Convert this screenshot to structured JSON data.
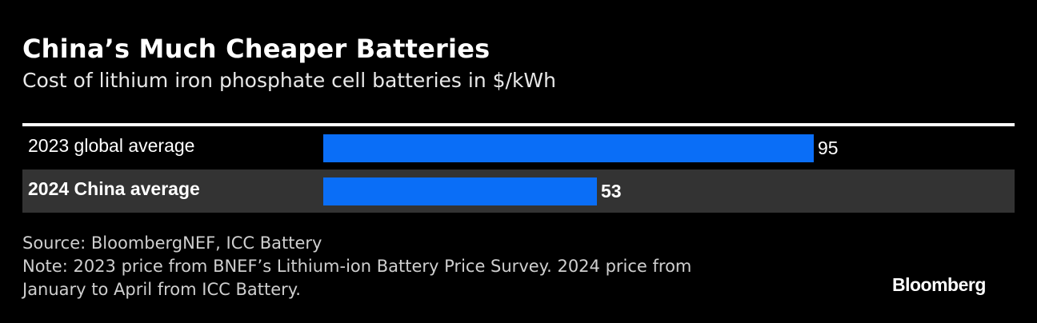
{
  "chart_data": {
    "type": "bar",
    "orientation": "horizontal",
    "title": "China’s Much Cheaper Batteries",
    "subtitle": "Cost of lithium iron phosphate cell batteries in $/kWh",
    "categories": [
      "2023 global average",
      "2024 China average"
    ],
    "values": [
      95,
      53
    ],
    "highlighted": "2024 China average",
    "bar_color": "#0a6ef7",
    "highlight_row_color": "#333333",
    "grid": false
  },
  "footer": {
    "source": "Source: BloombergNEF, ICC Battery",
    "note_line1": "Note: 2023 price from BNEF’s Lithium-ion Battery Price Survey. 2024 price from",
    "note_line2": "January to April from ICC Battery.",
    "logo": "Bloomberg"
  }
}
